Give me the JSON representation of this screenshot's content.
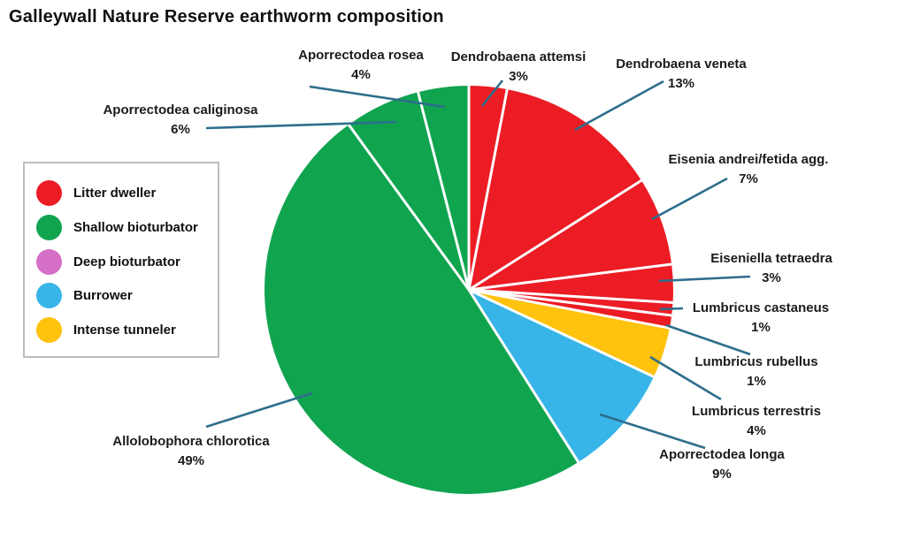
{
  "title": "Galleywall Nature Reserve earthworm composition",
  "legend": {
    "items": [
      {
        "label": "Litter dweller",
        "color": "#EC1C24"
      },
      {
        "label": "Shallow bioturbator",
        "color": "#10A44F"
      },
      {
        "label": "Deep bioturbator",
        "color": "#D66FC8"
      },
      {
        "label": "Burrower",
        "color": "#38B5E8"
      },
      {
        "label": "Intense tunneler",
        "color": "#FFC20D"
      }
    ]
  },
  "chart_data": {
    "type": "pie",
    "title": "Galleywall Nature Reserve earthworm composition",
    "start_angle_deg": 0,
    "direction": "clockwise",
    "legend_position": "left",
    "center": [
      530,
      328
    ],
    "radius": 231,
    "separator_color": "#FFFFFF",
    "leader_color": "#2E6E8C",
    "label_color": "#1B1B1B",
    "colors": {
      "red": "#EC1C24",
      "green": "#10A44F",
      "blue": "#38B5E8",
      "yellow": "#FFC20D",
      "pink": "#D66FC8"
    },
    "categories": [
      "Dendrobaena attemsi",
      "Dendrobaena veneta",
      "Eisenia andrei/fetida agg.",
      "Eiseniella tetraedra",
      "Lumbricus castaneus",
      "Lumbricus rubellus",
      "Lumbricus terrestris",
      "Aporrectodea longa",
      "Allolobophora chlorotica",
      "Aporrectodea caliginosa",
      "Aporrectodea rosea"
    ],
    "values": [
      3,
      13,
      7,
      3,
      1,
      1,
      4,
      9,
      49,
      6,
      4
    ],
    "slices": [
      {
        "id": "dendrobaena-attemsi",
        "name": "Dendrobaena attemsi",
        "pct": 3,
        "pct_label": "3%",
        "group": "Litter dweller",
        "color_key": "red",
        "label": [
          586,
          65
        ],
        "leader": [
          568,
          91,
          545,
          120
        ]
      },
      {
        "id": "dendrobaena-veneta",
        "name": "Dendrobaena veneta",
        "pct": 13,
        "pct_label": "13%",
        "group": "Litter dweller",
        "color_key": "red",
        "label": [
          770,
          73
        ],
        "leader": [
          750,
          92,
          650,
          147
        ]
      },
      {
        "id": "eisenia-andrei-fetida",
        "name": "Eisenia andrei/fetida agg.",
        "pct": 7,
        "pct_label": "7%",
        "group": "Litter dweller",
        "color_key": "red",
        "label": [
          846,
          181
        ],
        "leader": [
          822,
          202,
          737,
          248
        ]
      },
      {
        "id": "eiseniella-tetraedra",
        "name": "Eiseniella tetraedra",
        "pct": 3,
        "pct_label": "3%",
        "group": "Litter dweller",
        "color_key": "red",
        "label": [
          872,
          293
        ],
        "leader": [
          848,
          313,
          745,
          318
        ]
      },
      {
        "id": "lumbricus-castaneus",
        "name": "Lumbricus castaneus",
        "pct": 1,
        "pct_label": "1%",
        "group": "Litter dweller",
        "color_key": "red",
        "label": [
          860,
          349
        ],
        "leader": [
          772,
          349,
          746,
          350
        ]
      },
      {
        "id": "lumbricus-rubellus",
        "name": "Lumbricus rubellus",
        "pct": 1,
        "pct_label": "1%",
        "group": "Litter dweller",
        "color_key": "red",
        "label": [
          855,
          410
        ],
        "leader": [
          753,
          368,
          848,
          401
        ]
      },
      {
        "id": "lumbricus-terrestris",
        "name": "Lumbricus terrestris",
        "pct": 4,
        "pct_label": "4%",
        "group": "Intense tunneler",
        "color_key": "yellow",
        "label": [
          855,
          466
        ],
        "leader": [
          735,
          404,
          815,
          452
        ]
      },
      {
        "id": "aporrectodea-longa",
        "name": "Aporrectodea longa",
        "pct": 9,
        "pct_label": "9%",
        "group": "Burrower",
        "color_key": "blue",
        "label": [
          816,
          515
        ],
        "leader": [
          678,
          469,
          797,
          507
        ]
      },
      {
        "id": "allolobophora-chlorotica",
        "name": "Allolobophora chlorotica",
        "pct": 49,
        "pct_label": "49%",
        "group": "Shallow bioturbator",
        "color_key": "green",
        "label": [
          216,
          500
        ],
        "leader": [
          353,
          445,
          233,
          483
        ]
      },
      {
        "id": "aporrectodea-caliginosa",
        "name": "Aporrectodea caliginosa",
        "pct": 6,
        "pct_label": "6%",
        "group": "Shallow bioturbator",
        "color_key": "green",
        "label": [
          204,
          125
        ],
        "leader": [
          448,
          138,
          233,
          145
        ]
      },
      {
        "id": "aporrectodea-rosea",
        "name": "Aporrectodea rosea",
        "pct": 4,
        "pct_label": "4%",
        "group": "Shallow bioturbator",
        "color_key": "green",
        "label": [
          408,
          63
        ],
        "leader": [
          503,
          121,
          350,
          98
        ]
      }
    ]
  }
}
